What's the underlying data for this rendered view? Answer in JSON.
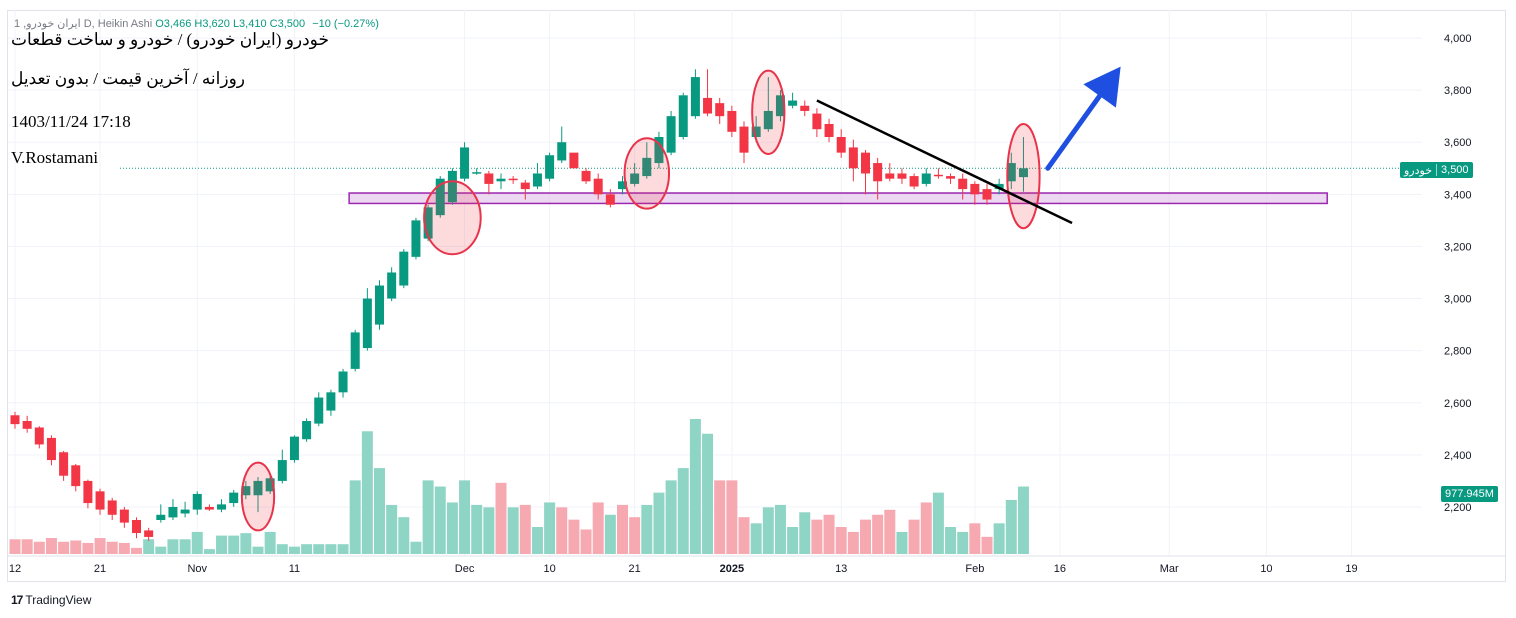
{
  "legend": {
    "symbol": "ایران خودرو, 1",
    "interval_style": "D, Heikin Ashi",
    "open": "O3,466",
    "high": "H3,620",
    "low": "L3,410",
    "close": "C3,500",
    "change": "−10 (−0.27%)"
  },
  "annotations": {
    "title": "خودرو (ایران خودرو) / خودرو و ساخت قطعات",
    "subtitle": "روزانه / آخرین قیمت / بدون تعدیل",
    "datetime": "1403/11/24 17:18",
    "author": "V.Rostamani"
  },
  "price_badge": {
    "symbol": "خودرو",
    "value": "3,500"
  },
  "volume_badge": "977.945M",
  "brand": {
    "logo": "17",
    "name": "TradingView"
  },
  "colors": {
    "up": "#089981",
    "down": "#f23645",
    "up_volume": "#8fd5c6",
    "down_volume": "#f7a9b2",
    "zone": "#9c27b0",
    "arrow": "#1e4fe0",
    "ellipse": "#e8334a"
  },
  "chart_data": {
    "type": "candlestick",
    "style": "Heikin Ashi",
    "y_range": [
      2050,
      4100
    ],
    "y_ticks": [
      4000,
      3800,
      3600,
      3400,
      3200,
      3000,
      2800,
      2600,
      2400,
      2200
    ],
    "y_tick_labels": [
      "4,000",
      "3,800",
      "3,600",
      "3,400",
      "3,200",
      "3,000",
      "2,800",
      "2,600",
      "2,400",
      "2,200"
    ],
    "x_tick_labels": [
      {
        "label": "12",
        "bar": 0
      },
      {
        "label": "21",
        "bar": 7
      },
      {
        "label": "Nov",
        "bar": 15
      },
      {
        "label": "11",
        "bar": 23
      },
      {
        "label": "Dec",
        "bar": 37
      },
      {
        "label": "10",
        "bar": 44
      },
      {
        "label": "21",
        "bar": 51
      },
      {
        "label": "2025",
        "bar": 59,
        "bold": true
      },
      {
        "label": "13",
        "bar": 68
      },
      {
        "label": "Feb",
        "bar": 79
      },
      {
        "label": "16",
        "bar": 86
      },
      {
        "label": "Mar",
        "bar": 95
      },
      {
        "label": "10",
        "bar": 103
      },
      {
        "label": "19",
        "bar": 110
      }
    ],
    "last_price": 3500,
    "candles": [
      [
        2552,
        2518,
        2565,
        2500
      ],
      [
        2530,
        2500,
        2550,
        2485
      ],
      [
        2505,
        2440,
        2510,
        2425
      ],
      [
        2465,
        2380,
        2475,
        2360
      ],
      [
        2410,
        2320,
        2415,
        2300
      ],
      [
        2360,
        2280,
        2365,
        2260
      ],
      [
        2300,
        2215,
        2305,
        2195
      ],
      [
        2260,
        2190,
        2270,
        2170
      ],
      [
        2225,
        2170,
        2235,
        2150
      ],
      [
        2190,
        2140,
        2200,
        2120
      ],
      [
        2150,
        2100,
        2160,
        2080
      ],
      [
        2110,
        2085,
        2120,
        2070
      ],
      [
        2150,
        2170,
        2210,
        2140
      ],
      [
        2160,
        2200,
        2230,
        2150
      ],
      [
        2175,
        2190,
        2220,
        2160
      ],
      [
        2190,
        2250,
        2260,
        2170
      ],
      [
        2200,
        2190,
        2210,
        2185
      ],
      [
        2190,
        2210,
        2230,
        2180
      ],
      [
        2215,
        2255,
        2265,
        2200
      ],
      [
        2245,
        2280,
        2300,
        2230
      ],
      [
        2245,
        2300,
        2315,
        2180
      ],
      [
        2260,
        2310,
        2320,
        2250
      ],
      [
        2300,
        2380,
        2420,
        2290
      ],
      [
        2380,
        2470,
        2475,
        2370
      ],
      [
        2460,
        2530,
        2540,
        2450
      ],
      [
        2520,
        2620,
        2640,
        2510
      ],
      [
        2570,
        2640,
        2650,
        2550
      ],
      [
        2640,
        2720,
        2730,
        2620
      ],
      [
        2730,
        2870,
        2880,
        2720
      ],
      [
        2810,
        3000,
        3040,
        2800
      ],
      [
        2900,
        3050,
        3070,
        2880
      ],
      [
        3000,
        3100,
        3120,
        2990
      ],
      [
        3050,
        3180,
        3190,
        3040
      ],
      [
        3160,
        3300,
        3310,
        3150
      ],
      [
        3230,
        3350,
        3360,
        3220
      ],
      [
        3320,
        3460,
        3470,
        3310
      ],
      [
        3370,
        3490,
        3500,
        3360
      ],
      [
        3460,
        3580,
        3600,
        3450
      ],
      [
        3480,
        3485,
        3500,
        3475
      ],
      [
        3480,
        3440,
        3490,
        3400
      ],
      [
        3450,
        3460,
        3480,
        3420
      ],
      [
        3460,
        3455,
        3470,
        3440
      ],
      [
        3445,
        3420,
        3455,
        3380
      ],
      [
        3430,
        3480,
        3520,
        3420
      ],
      [
        3460,
        3550,
        3560,
        3450
      ],
      [
        3530,
        3600,
        3660,
        3520
      ],
      [
        3560,
        3500,
        3530,
        3500
      ],
      [
        3490,
        3450,
        3500,
        3440
      ],
      [
        3460,
        3400,
        3480,
        3380
      ],
      [
        3400,
        3360,
        3420,
        3350
      ],
      [
        3420,
        3450,
        3470,
        3400
      ],
      [
        3440,
        3480,
        3520,
        3430
      ],
      [
        3470,
        3540,
        3600,
        3460
      ],
      [
        3520,
        3620,
        3640,
        3500
      ],
      [
        3560,
        3700,
        3720,
        3550
      ],
      [
        3620,
        3780,
        3790,
        3610
      ],
      [
        3700,
        3850,
        3880,
        3690
      ],
      [
        3770,
        3710,
        3880,
        3700
      ],
      [
        3750,
        3700,
        3770,
        3670
      ],
      [
        3720,
        3640,
        3740,
        3620
      ],
      [
        3660,
        3560,
        3680,
        3520
      ],
      [
        3620,
        3660,
        3700,
        3600
      ],
      [
        3650,
        3720,
        3850,
        3640
      ],
      [
        3700,
        3780,
        3800,
        3680
      ],
      [
        3740,
        3760,
        3790,
        3730
      ],
      [
        3740,
        3720,
        3760,
        3700
      ],
      [
        3710,
        3650,
        3730,
        3620
      ],
      [
        3670,
        3620,
        3690,
        3600
      ],
      [
        3620,
        3560,
        3650,
        3540
      ],
      [
        3580,
        3500,
        3610,
        3450
      ],
      [
        3560,
        3480,
        3570,
        3400
      ],
      [
        3520,
        3450,
        3540,
        3380
      ],
      [
        3480,
        3460,
        3520,
        3450
      ],
      [
        3480,
        3460,
        3500,
        3440
      ],
      [
        3470,
        3430,
        3480,
        3420
      ],
      [
        3440,
        3480,
        3500,
        3430
      ],
      [
        3475,
        3470,
        3500,
        3460
      ],
      [
        3470,
        3460,
        3480,
        3440
      ],
      [
        3460,
        3420,
        3480,
        3380
      ],
      [
        3440,
        3400,
        3450,
        3360
      ],
      [
        3420,
        3380,
        3440,
        3360
      ],
      [
        3420,
        3440,
        3460,
        3400
      ],
      [
        3450,
        3520,
        3560,
        3420
      ],
      [
        3466,
        3500,
        3620,
        3410
      ]
    ],
    "volumes": [
      {
        "v": 0.12,
        "up": false
      },
      {
        "v": 0.12,
        "up": false
      },
      {
        "v": 0.1,
        "up": false
      },
      {
        "v": 0.13,
        "up": false
      },
      {
        "v": 0.1,
        "up": false
      },
      {
        "v": 0.11,
        "up": false
      },
      {
        "v": 0.09,
        "up": false
      },
      {
        "v": 0.13,
        "up": false
      },
      {
        "v": 0.1,
        "up": false
      },
      {
        "v": 0.09,
        "up": false
      },
      {
        "v": 0.05,
        "up": false
      },
      {
        "v": 0.12,
        "up": true
      },
      {
        "v": 0.06,
        "up": true
      },
      {
        "v": 0.12,
        "up": true
      },
      {
        "v": 0.12,
        "up": true
      },
      {
        "v": 0.18,
        "up": true
      },
      {
        "v": 0.04,
        "up": true
      },
      {
        "v": 0.15,
        "up": true
      },
      {
        "v": 0.15,
        "up": true
      },
      {
        "v": 0.17,
        "up": true
      },
      {
        "v": 0.06,
        "up": true
      },
      {
        "v": 0.18,
        "up": true
      },
      {
        "v": 0.08,
        "up": true
      },
      {
        "v": 0.06,
        "up": true
      },
      {
        "v": 0.08,
        "up": true
      },
      {
        "v": 0.08,
        "up": true
      },
      {
        "v": 0.08,
        "up": true
      },
      {
        "v": 0.08,
        "up": true
      },
      {
        "v": 0.6,
        "up": true
      },
      {
        "v": 1.0,
        "up": true
      },
      {
        "v": 0.7,
        "up": true
      },
      {
        "v": 0.4,
        "up": true
      },
      {
        "v": 0.3,
        "up": true
      },
      {
        "v": 0.1,
        "up": true
      },
      {
        "v": 0.6,
        "up": true
      },
      {
        "v": 0.55,
        "up": true
      },
      {
        "v": 0.42,
        "up": true
      },
      {
        "v": 0.6,
        "up": true
      },
      {
        "v": 0.4,
        "up": true
      },
      {
        "v": 0.38,
        "up": true
      },
      {
        "v": 0.58,
        "up": false
      },
      {
        "v": 0.38,
        "up": true
      },
      {
        "v": 0.4,
        "up": false
      },
      {
        "v": 0.22,
        "up": true
      },
      {
        "v": 0.42,
        "up": true
      },
      {
        "v": 0.38,
        "up": false
      },
      {
        "v": 0.28,
        "up": false
      },
      {
        "v": 0.2,
        "up": false
      },
      {
        "v": 0.42,
        "up": false
      },
      {
        "v": 0.32,
        "up": true
      },
      {
        "v": 0.4,
        "up": false
      },
      {
        "v": 0.3,
        "up": false
      },
      {
        "v": 0.4,
        "up": true
      },
      {
        "v": 0.5,
        "up": true
      },
      {
        "v": 0.6,
        "up": true
      },
      {
        "v": 0.7,
        "up": true
      },
      {
        "v": 1.1,
        "up": true
      },
      {
        "v": 0.98,
        "up": true
      },
      {
        "v": 0.6,
        "up": false
      },
      {
        "v": 0.6,
        "up": false
      },
      {
        "v": 0.3,
        "up": false
      },
      {
        "v": 0.25,
        "up": true
      },
      {
        "v": 0.38,
        "up": true
      },
      {
        "v": 0.4,
        "up": true
      },
      {
        "v": 0.22,
        "up": true
      },
      {
        "v": 0.34,
        "up": true
      },
      {
        "v": 0.28,
        "up": false
      },
      {
        "v": 0.32,
        "up": false
      },
      {
        "v": 0.22,
        "up": false
      },
      {
        "v": 0.18,
        "up": false
      },
      {
        "v": 0.28,
        "up": false
      },
      {
        "v": 0.32,
        "up": false
      },
      {
        "v": 0.36,
        "up": false
      },
      {
        "v": 0.18,
        "up": true
      },
      {
        "v": 0.28,
        "up": false
      },
      {
        "v": 0.42,
        "up": false
      },
      {
        "v": 0.5,
        "up": true
      },
      {
        "v": 0.22,
        "up": true
      },
      {
        "v": 0.18,
        "up": true
      },
      {
        "v": 0.25,
        "up": false
      },
      {
        "v": 0.14,
        "up": false
      },
      {
        "v": 0.25,
        "up": true
      },
      {
        "v": 0.44,
        "up": true
      },
      {
        "v": 0.55,
        "up": true
      }
    ],
    "support_zone": {
      "from": 3365,
      "to": 3405,
      "bar_start": 27.5,
      "bar_end": 108
    },
    "trendline": {
      "bar_start": 66,
      "price_start": 3760,
      "bar_end": 87,
      "price_end": 3290
    },
    "highlight_ellipses": [
      {
        "bar": 20,
        "price": 2240,
        "bars_wide": 2,
        "price_tall": 260
      },
      {
        "bar": 36,
        "price": 3310,
        "bars_wide": 4,
        "price_tall": 280
      },
      {
        "bar": 52,
        "price": 3480,
        "bars_wide": 3,
        "price_tall": 270
      },
      {
        "bar": 62,
        "price": 3715,
        "bars_wide": 2,
        "price_tall": 320
      },
      {
        "bar": 83,
        "price": 3470,
        "bars_wide": 2,
        "price_tall": 400
      }
    ],
    "arrow": {
      "bar_start": 85,
      "price_start": 3500,
      "bar_end": 91,
      "price_end": 3890
    }
  }
}
